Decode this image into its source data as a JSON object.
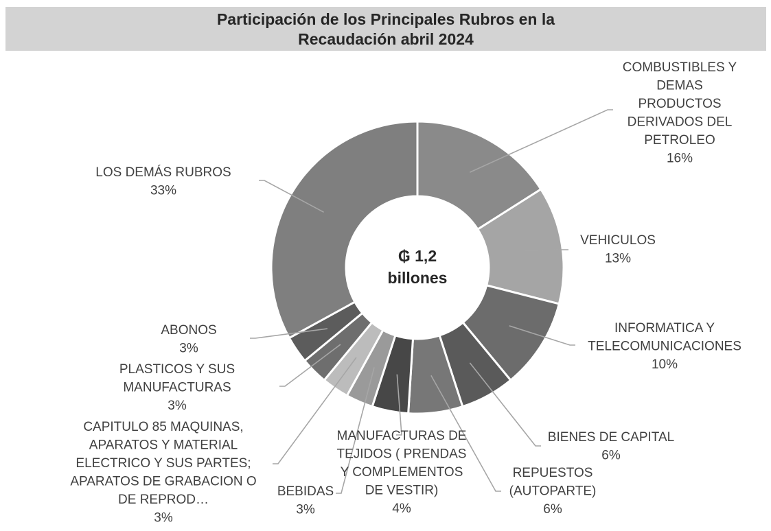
{
  "chart_data": {
    "type": "pie",
    "donut": true,
    "title": [
      "Participación de los Principales Rubros en la",
      "Recaudación abril 2024"
    ],
    "center_label": [
      "₲ 1,2",
      "billones"
    ],
    "legend": "none",
    "slices": [
      {
        "label": [
          "COMBUSTIBLES Y",
          "DEMAS",
          "PRODUCTOS",
          "DERIVADOS DEL",
          "PETROLEO"
        ],
        "pct_label": "16%",
        "value": 16,
        "color": "#8a8a8a"
      },
      {
        "label": [
          "VEHICULOS"
        ],
        "pct_label": "13%",
        "value": 13,
        "color": "#a5a5a5"
      },
      {
        "label": [
          "INFORMATICA Y",
          "TELECOMUNICACIONES"
        ],
        "pct_label": "10%",
        "value": 10,
        "color": "#6c6c6c"
      },
      {
        "label": [
          "BIENES DE CAPITAL"
        ],
        "pct_label": "6%",
        "value": 6,
        "color": "#5a5a5a"
      },
      {
        "label": [
          "REPUESTOS",
          "(AUTOPARTE)"
        ],
        "pct_label": "6%",
        "value": 6,
        "color": "#777777"
      },
      {
        "label": [
          "MANUFACTURAS DE",
          "TEJIDOS ( PRENDAS",
          "Y COMPLEMENTOS",
          "DE VESTIR)"
        ],
        "pct_label": "4%",
        "value": 4,
        "color": "#474747"
      },
      {
        "label": [
          "BEBIDAS"
        ],
        "pct_label": "3%",
        "value": 3,
        "color": "#9a9a9a"
      },
      {
        "label": [
          "CAPITULO 85 MAQUINAS,",
          "APARATOS Y MATERIAL",
          "ELECTRICO Y SUS PARTES;",
          "APARATOS DE GRABACION O",
          "DE REPROD…"
        ],
        "pct_label": "3%",
        "value": 3,
        "color": "#bcbcbc"
      },
      {
        "label": [
          "PLASTICOS Y SUS",
          "MANUFACTURAS"
        ],
        "pct_label": "3%",
        "value": 3,
        "color": "#6e6e6e"
      },
      {
        "label": [
          "ABONOS"
        ],
        "pct_label": "3%",
        "value": 3,
        "color": "#5c5c5c"
      },
      {
        "label": [
          "LOS DEMÁS RUBROS"
        ],
        "pct_label": "33%",
        "value": 33,
        "color": "#7f7f7f"
      }
    ]
  }
}
